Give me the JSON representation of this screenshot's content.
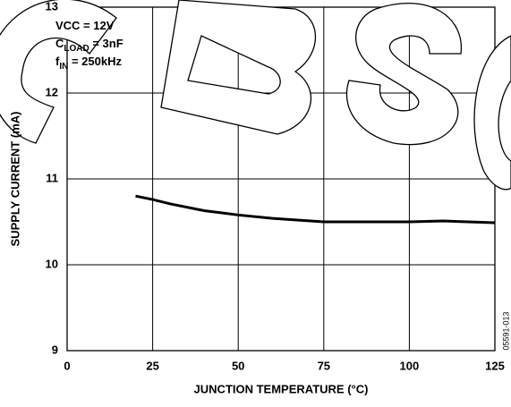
{
  "chart_data": {
    "type": "line",
    "x_label": "JUNCTION TEMPERATURE (°C)",
    "y_label": "SUPPLY CURRENT (mA)",
    "annotations": [
      [
        "VCC = 12V"
      ],
      [
        "C",
        "LOAD",
        " = 3nF"
      ],
      [
        "f",
        "IN",
        " = 250kHz"
      ]
    ],
    "figure_id": "05591-013",
    "x": [
      20,
      25,
      30,
      40,
      50,
      60,
      75,
      90,
      100,
      110,
      125
    ],
    "series": [
      {
        "color": "#000000",
        "values": [
          10.8,
          10.76,
          10.71,
          10.63,
          10.58,
          10.54,
          10.5,
          10.5,
          10.5,
          10.51,
          10.49
        ]
      }
    ],
    "xlim": [
      0,
      125
    ],
    "xticks": [
      0,
      25,
      50,
      75,
      100,
      125
    ],
    "ylim": [
      9,
      13
    ],
    "yticks": [
      9,
      10,
      11,
      12,
      13
    ],
    "grid": true
  }
}
